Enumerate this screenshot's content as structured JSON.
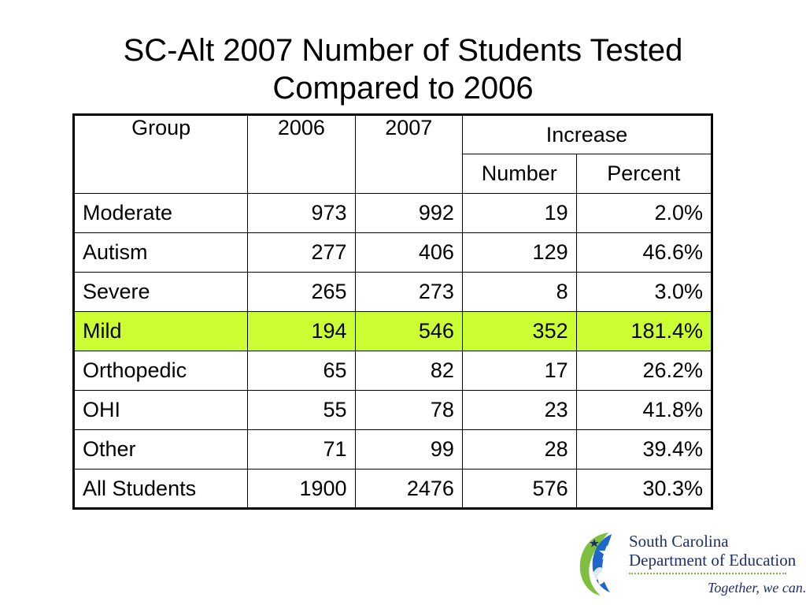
{
  "slide": {
    "title_line1": "SC-Alt 2007 Number of Students Tested",
    "title_line2": "Compared to 2006"
  },
  "table": {
    "headers": {
      "group": "Group",
      "y2006": "2006",
      "y2007": "2007",
      "increase": "Increase",
      "number": "Number",
      "percent": "Percent"
    },
    "rows": [
      {
        "group": "Moderate",
        "y2006": "973",
        "y2007": "992",
        "number": "19",
        "percent": "2.0%"
      },
      {
        "group": "Autism",
        "y2006": "277",
        "y2007": "406",
        "number": "129",
        "percent": "46.6%"
      },
      {
        "group": "Severe",
        "y2006": "265",
        "y2007": "273",
        "number": "8",
        "percent": "3.0%"
      },
      {
        "group": "Mild",
        "y2006": "194",
        "y2007": "546",
        "number": "352",
        "percent": "181.4%"
      },
      {
        "group": "Orthopedic",
        "y2006": "65",
        "y2007": "82",
        "number": "17",
        "percent": "26.2%"
      },
      {
        "group": "OHI",
        "y2006": "55",
        "y2007": "78",
        "number": "23",
        "percent": "41.8%"
      },
      {
        "group": "Other",
        "y2006": "71",
        "y2007": "99",
        "number": "28",
        "percent": "39.4%"
      },
      {
        "group": "All Students",
        "y2006": "1900",
        "y2007": "2476",
        "number": "576",
        "percent": "30.3%"
      }
    ],
    "highlight_row": "Mild",
    "highlight_color": "#ccff33"
  },
  "logo": {
    "line1": "South Carolina",
    "line2": "Department of Education",
    "tagline": "Together, we can.",
    "icon": "star-hands-logo-icon",
    "colors": {
      "navy": "#1f2f6b",
      "green": "#7fbf3f",
      "blue": "#1e66c8"
    }
  }
}
